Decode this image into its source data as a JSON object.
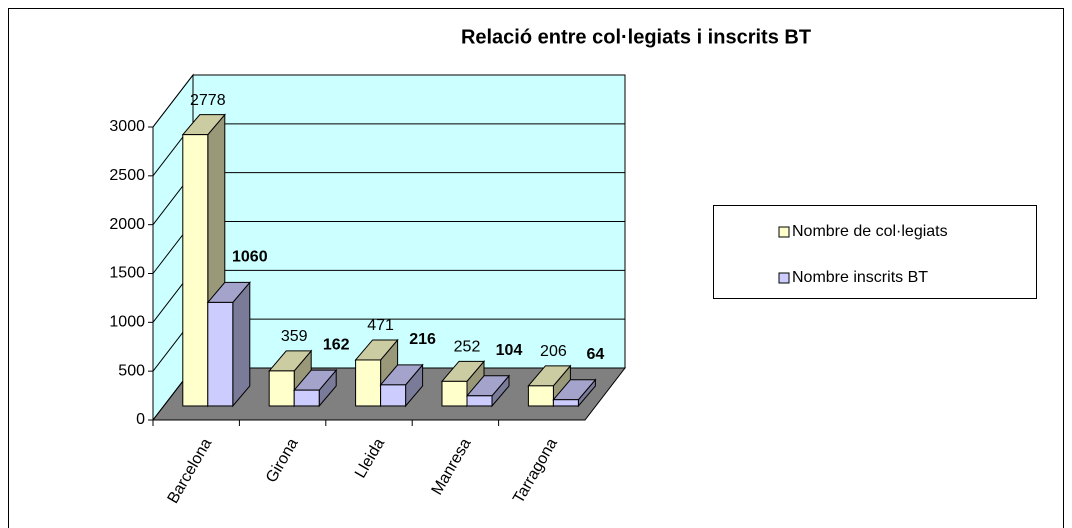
{
  "chart_data": {
    "type": "bar3d",
    "title": "Relació entre col·legiats i inscrits BT",
    "categories": [
      "Barcelona",
      "Girona",
      "Lleida",
      "Manresa",
      "Tarragona"
    ],
    "series": [
      {
        "name": "Nombre de col·legiats",
        "color": "#ffffcc",
        "values": [
          2778,
          359,
          471,
          252,
          206
        ]
      },
      {
        "name": "Nombre inscrits BT",
        "color": "#ccccff",
        "values": [
          1060,
          162,
          216,
          104,
          64
        ]
      }
    ],
    "ylim": [
      0,
      3000
    ],
    "yticks": [
      0,
      500,
      1000,
      1500,
      2000,
      2500,
      3000
    ],
    "grid": true,
    "wall_color": "#ccffff",
    "floor_color": "#808080",
    "legend": "right"
  }
}
